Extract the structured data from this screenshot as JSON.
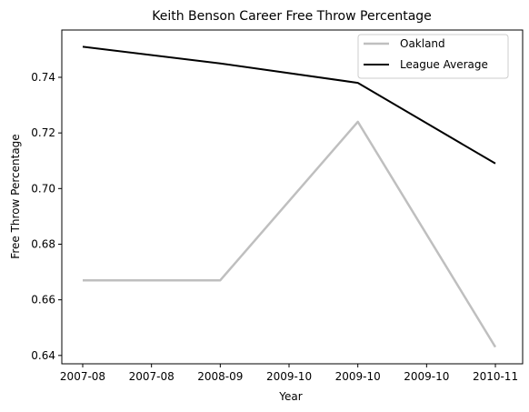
{
  "chart_data": {
    "type": "line",
    "title": "Keith Benson Career Free Throw Percentage",
    "xlabel": "Year",
    "ylabel": "Free Throw Percentage",
    "x_tick_labels": [
      "2007-08",
      "2007-08",
      "2008-09",
      "2009-10",
      "2009-10",
      "2009-10",
      "2010-11"
    ],
    "ylim": [
      0.637,
      0.757
    ],
    "yticks": [
      0.64,
      0.66,
      0.68,
      0.7,
      0.72,
      0.74
    ],
    "grid": false,
    "legend_position": "top-right",
    "series": [
      {
        "name": "Oakland",
        "color": "#bfbfbf",
        "points": [
          {
            "x": "2007-08",
            "y": 0.667
          },
          {
            "x": "2008-09",
            "y": 0.667
          },
          {
            "x": "2009-10",
            "y": 0.724
          },
          {
            "x": "2010-11",
            "y": 0.643
          }
        ]
      },
      {
        "name": "League Average",
        "color": "#000000",
        "points": [
          {
            "x": "2007-08",
            "y": 0.751
          },
          {
            "x": "2008-09",
            "y": 0.745
          },
          {
            "x": "2009-10",
            "y": 0.738
          },
          {
            "x": "2010-11",
            "y": 0.709
          }
        ]
      }
    ]
  }
}
